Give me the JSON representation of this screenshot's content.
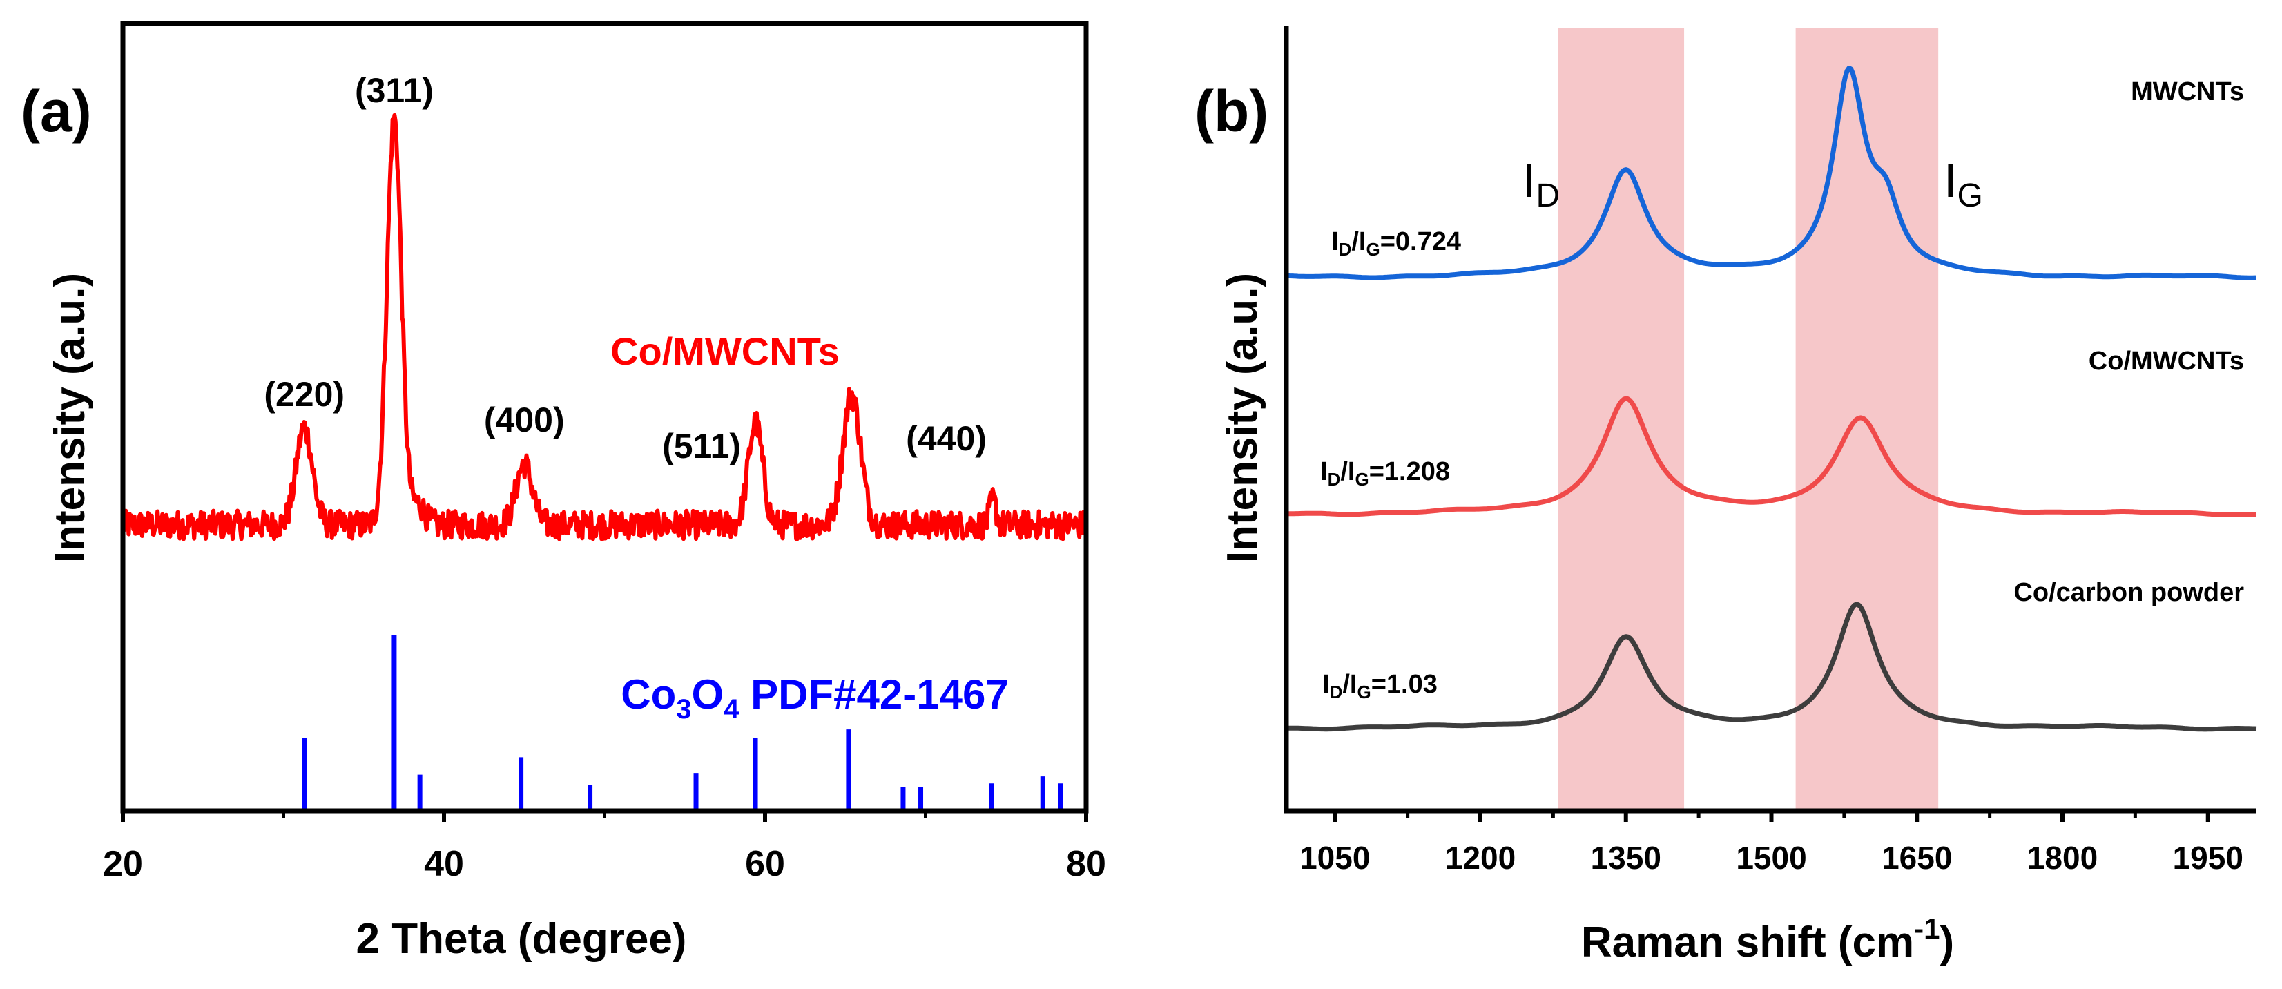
{
  "chart_data": [
    {
      "type": "line",
      "panel_label": "(a)",
      "title": "",
      "xlabel": "2 Theta (degree)",
      "ylabel": "Intensity (a.u.)",
      "xlim": [
        20,
        80
      ],
      "xticks": [
        "20",
        "40",
        "60",
        "80"
      ],
      "y_ticks_shown": false,
      "series": [
        {
          "name": "Co/MWCNTs",
          "color": "#ff0000",
          "baseline": 0.44,
          "noise": 0.035,
          "peaks": [
            {
              "x": 31.3,
              "height": 0.24,
              "width": 0.5
            },
            {
              "x": 36.9,
              "height": 1.0,
              "width": 0.45
            },
            {
              "x": 38.4,
              "height": 0.05,
              "width": 0.4
            },
            {
              "x": 45.0,
              "height": 0.15,
              "width": 0.5
            },
            {
              "x": 59.4,
              "height": 0.25,
              "width": 0.45
            },
            {
              "x": 65.4,
              "height": 0.32,
              "width": 0.55
            },
            {
              "x": 74.2,
              "height": 0.06,
              "width": 0.2
            }
          ]
        }
      ],
      "reference": {
        "name_prefix": "Co",
        "name_sub": "3",
        "name_mid": "O",
        "name_sub2": "4",
        "name_suffix": " PDF#42-1467",
        "color": "#0000ff",
        "sticks": [
          {
            "x": 31.3,
            "intensity": 0.41
          },
          {
            "x": 36.9,
            "intensity": 1.0
          },
          {
            "x": 38.5,
            "intensity": 0.2
          },
          {
            "x": 44.8,
            "intensity": 0.3
          },
          {
            "x": 49.1,
            "intensity": 0.14
          },
          {
            "x": 55.7,
            "intensity": 0.21
          },
          {
            "x": 59.4,
            "intensity": 0.41
          },
          {
            "x": 65.2,
            "intensity": 0.46
          },
          {
            "x": 68.6,
            "intensity": 0.13
          },
          {
            "x": 69.7,
            "intensity": 0.13
          },
          {
            "x": 74.1,
            "intensity": 0.15
          },
          {
            "x": 77.3,
            "intensity": 0.19
          },
          {
            "x": 78.4,
            "intensity": 0.15
          }
        ]
      },
      "annotations": [
        {
          "text": "(220)",
          "x": 31.3
        },
        {
          "text": "(311)",
          "x": 36.9
        },
        {
          "text": "(400)",
          "x": 45.0
        },
        {
          "text": "(511)",
          "x": 59.4
        },
        {
          "text": "(440)",
          "x": 65.4
        }
      ],
      "series_label": "Co/MWCNTs"
    },
    {
      "type": "line",
      "panel_label": "(b)",
      "title": "",
      "xlabel_main": "Raman shift (cm",
      "xlabel_sup": "-1",
      "xlabel_end": ")",
      "ylabel": "Intensity (a.u.)",
      "xlim": [
        1000,
        2000
      ],
      "xticks": [
        "1050",
        "1200",
        "1350",
        "1500",
        "1650",
        "1800",
        "1950"
      ],
      "y_ticks_shown": false,
      "highlight_bands": [
        {
          "label": "I",
          "sub": "D",
          "x_range": [
            1280,
            1410
          ],
          "color": "#f6c7c9"
        },
        {
          "label": "I",
          "sub": "G",
          "x_range": [
            1525,
            1672
          ],
          "color": "#f6c7c9"
        }
      ],
      "series": [
        {
          "name": "MWCNTs",
          "ratio_label": "=0.724",
          "color": "#1565d8",
          "peaks": [
            {
              "x": 1350,
              "height": 0.42,
              "width": 26
            },
            {
              "x": 1580,
              "height": 0.78,
              "width": 20
            },
            {
              "x": 1618,
              "height": 0.22,
              "width": 18
            }
          ]
        },
        {
          "name": "Co/MWCNTs",
          "ratio_label": "=1.208",
          "color": "#f04a4a",
          "peaks": [
            {
              "x": 1350,
              "height": 0.45,
              "width": 30
            },
            {
              "x": 1592,
              "height": 0.37,
              "width": 32
            }
          ]
        },
        {
          "name": "Co/carbon powder",
          "ratio_label": "=1.03",
          "color": "#3d3d3d",
          "peaks": [
            {
              "x": 1350,
              "height": 0.35,
              "width": 28
            },
            {
              "x": 1588,
              "height": 0.48,
              "width": 26
            }
          ]
        }
      ]
    }
  ]
}
